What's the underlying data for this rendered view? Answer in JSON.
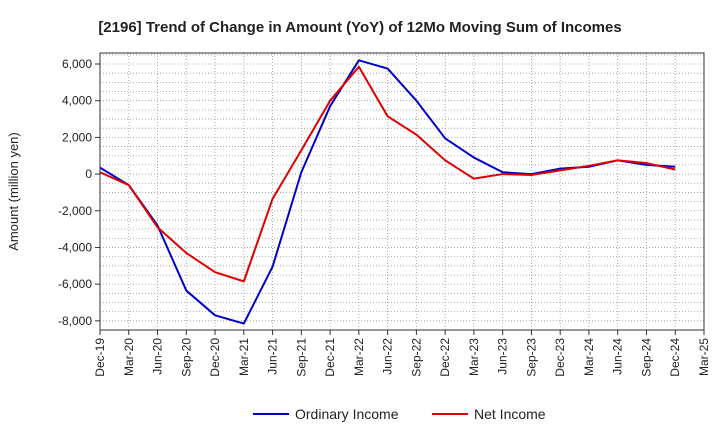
{
  "chart_data": {
    "type": "line",
    "title": "[2196]  Trend of Change in Amount (YoY) of 12Mo Moving Sum of Incomes",
    "xlabel": "",
    "ylabel": "Amount (million yen)",
    "ylim": [
      -8500,
      6600
    ],
    "yticks": [
      6000,
      4000,
      2000,
      0,
      -2000,
      -4000,
      -6000,
      -8000
    ],
    "ytick_labels": [
      "6,000",
      "4,000",
      "2,000",
      "0",
      "-2,000",
      "-4,000",
      "-6,000",
      "-8,000"
    ],
    "categories": [
      "Dec-19",
      "Mar-20",
      "Jun-20",
      "Sep-20",
      "Dec-20",
      "Mar-21",
      "Jun-21",
      "Sep-21",
      "Dec-21",
      "Mar-22",
      "Jun-22",
      "Sep-22",
      "Dec-22",
      "Mar-23",
      "Jun-23",
      "Sep-23",
      "Dec-23",
      "Mar-24",
      "Jun-24",
      "Sep-24",
      "Dec-24",
      "Mar-25"
    ],
    "grid": true,
    "legend_position": "bottom",
    "series": [
      {
        "name": "Ordinary Income",
        "color": "#0000cc",
        "values": [
          350,
          -600,
          -2800,
          -6350,
          -7700,
          -8150,
          -5050,
          100,
          3700,
          6200,
          5750,
          4000,
          1950,
          900,
          100,
          0,
          300,
          400,
          750,
          500,
          400,
          null
        ]
      },
      {
        "name": "Net Income",
        "color": "#dd0000",
        "values": [
          100,
          -600,
          -2900,
          -4300,
          -5350,
          -5850,
          -1350,
          1300,
          4000,
          5850,
          3150,
          2150,
          750,
          -250,
          0,
          -50,
          200,
          450,
          750,
          600,
          250,
          null
        ]
      }
    ]
  }
}
